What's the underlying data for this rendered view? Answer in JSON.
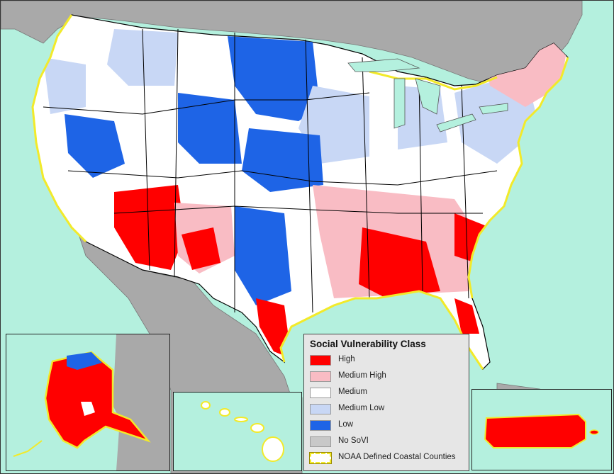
{
  "colors": {
    "water": "#b4f0de",
    "land_other": "#a9a9a9",
    "high": "#ff0000",
    "medium_high": "#f9bcc4",
    "medium": "#ffffff",
    "medium_low": "#c8d7f5",
    "low": "#1e64e6",
    "no_sovi": "#c8c8c8",
    "coastal_outline": "#f2ea2a"
  },
  "legend": {
    "title": "Social Vulnerability Class",
    "items": [
      {
        "label": "High",
        "color": "#ff0000",
        "style": "fill"
      },
      {
        "label": "Medium High",
        "color": "#f9bcc4",
        "style": "fill"
      },
      {
        "label": "Medium",
        "color": "#ffffff",
        "style": "fill"
      },
      {
        "label": "Medium Low",
        "color": "#c8d7f5",
        "style": "fill"
      },
      {
        "label": "Low",
        "color": "#1e64e6",
        "style": "fill"
      },
      {
        "label": "No SoVI",
        "color": "#c8c8c8",
        "style": "fill"
      },
      {
        "label": "NOAA Defined Coastal Counties",
        "color": "#f2ea2a",
        "style": "outline"
      }
    ]
  },
  "insets": [
    "Alaska",
    "Hawaii",
    "Puerto Rico"
  ]
}
